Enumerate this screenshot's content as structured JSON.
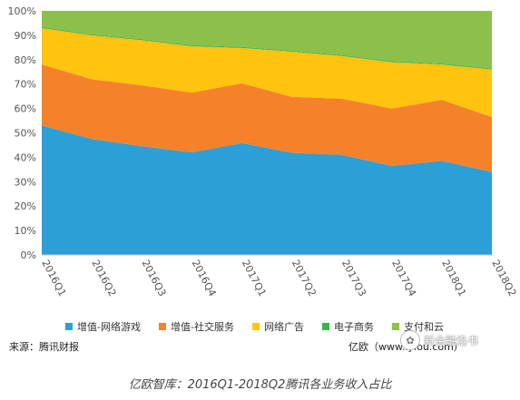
{
  "chart_data": {
    "type": "area",
    "stacked": true,
    "normalized": true,
    "categories": [
      "2016Q1",
      "2016Q2",
      "2016Q3",
      "2016Q4",
      "2017Q1",
      "2017Q2",
      "2017Q3",
      "2017Q4",
      "2018Q1",
      "2018Q2"
    ],
    "series": [
      {
        "name": "增值-网络游戏",
        "color": "#2c9fd6",
        "values": [
          53,
          47.5,
          44.5,
          42,
          45.8,
          41.8,
          41,
          36.5,
          38.5,
          34
        ]
      },
      {
        "name": "增值-社交服务",
        "color": "#f5822a",
        "values": [
          25,
          24.5,
          25,
          24.5,
          24.5,
          23,
          23,
          23.5,
          25,
          22.5
        ]
      },
      {
        "name": "网络广告",
        "color": "#ffc310",
        "values": [
          15,
          18,
          18.5,
          19,
          14.5,
          18.5,
          17.5,
          19,
          14.5,
          19.5
        ]
      },
      {
        "name": "电子商务",
        "color": "#39b54a",
        "values": [
          0.4,
          0.4,
          0.4,
          0.4,
          0.4,
          0.4,
          0.4,
          0.4,
          0.4,
          0.4
        ]
      },
      {
        "name": "支付和云",
        "color": "#8cc04a",
        "values": [
          6.6,
          9.6,
          11.6,
          14.1,
          14.8,
          16.3,
          18.1,
          20.6,
          21.6,
          23.6
        ]
      }
    ],
    "ylim": [
      0,
      100
    ],
    "yticks": [
      "0%",
      "10%",
      "20%",
      "30%",
      "40%",
      "50%",
      "60%",
      "70%",
      "80%",
      "90%",
      "100%"
    ],
    "legend_position": "bottom",
    "title": "亿欧智库：2016Q1-2018Q2腾讯各业务收入占比"
  },
  "source_text": "来源：腾讯财报",
  "credit_text": "亿欧（www.iyiou.com）",
  "watermark_text": "新金融洛书",
  "caption": "亿欧智库：2016Q1-2018Q2腾讯各业务收入占比"
}
